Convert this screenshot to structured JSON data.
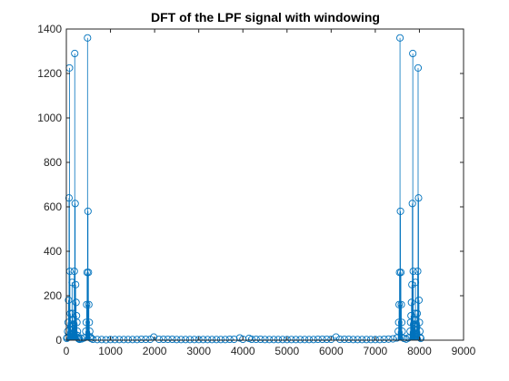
{
  "chart_data": {
    "type": "scatter",
    "style": "stem",
    "title": "DFT of the LPF signal with windowing",
    "xlabel": "",
    "ylabel": "",
    "xlim": [
      0,
      9000
    ],
    "ylim": [
      0,
      1400
    ],
    "x_ticks": [
      0,
      1000,
      2000,
      3000,
      4000,
      5000,
      6000,
      7000,
      8000,
      9000
    ],
    "y_ticks": [
      0,
      200,
      400,
      600,
      800,
      1000,
      1200,
      1400
    ],
    "grid": false,
    "legend": "none",
    "colors": {
      "series": "#0072BD",
      "axes": "#262626",
      "title": "#000000",
      "background": "#ffffff"
    },
    "series": [
      {
        "x": [
          10,
          20,
          30,
          40,
          50,
          60,
          70,
          80,
          90,
          100,
          110,
          120,
          130,
          140,
          150,
          160,
          170,
          180,
          190,
          200,
          210,
          220,
          230,
          240,
          250,
          260,
          270,
          280,
          290,
          300,
          350,
          400,
          440,
          450,
          460,
          470,
          480,
          490,
          500,
          510,
          520,
          530,
          540,
          560,
          600,
          700,
          800,
          900,
          1000,
          1100,
          1200,
          1300,
          1400,
          1500,
          1600,
          1700,
          1800,
          1900,
          1980,
          2100,
          2200,
          2300,
          2400,
          2500,
          2600,
          2700,
          2800,
          2900,
          3000,
          3100,
          3200,
          3300,
          3400,
          3500,
          3600,
          3700,
          3800,
          3930,
          4000,
          4140,
          4200,
          4300,
          4400,
          4500,
          4600,
          4700,
          4800,
          4900,
          5000,
          5100,
          5200,
          5300,
          5400,
          5500,
          5600,
          5700,
          5800,
          5900,
          6000,
          6110,
          6200,
          6300,
          6400,
          6500,
          6600,
          6700,
          6800,
          6900,
          7000,
          7100,
          7200,
          7300,
          7400,
          7490,
          7520,
          7530,
          7540,
          7550,
          7560,
          7570,
          7580,
          7590,
          7600,
          7610,
          7650,
          7700,
          7750,
          7790,
          7800,
          7810,
          7820,
          7830,
          7840,
          7850,
          7860,
          7870,
          7880,
          7890,
          7900,
          7910,
          7920,
          7930,
          7940,
          7950,
          7960,
          7970,
          7980,
          7990,
          8000,
          8010,
          8020,
          8030
        ],
        "y": [
          8,
          12,
          40,
          80,
          180,
          640,
          1225,
          310,
          120,
          60,
          30,
          45,
          260,
          120,
          90,
          50,
          70,
          310,
          1290,
          615,
          250,
          170,
          110,
          80,
          40,
          20,
          10,
          6,
          5,
          4,
          6,
          10,
          40,
          80,
          160,
          305,
          1360,
          580,
          305,
          160,
          80,
          40,
          15,
          8,
          4,
          3,
          3,
          2,
          3,
          3,
          3,
          3,
          3,
          3,
          3,
          4,
          4,
          4,
          14,
          4,
          4,
          4,
          4,
          3,
          3,
          3,
          3,
          3,
          3,
          3,
          3,
          3,
          3,
          3,
          3,
          4,
          4,
          10,
          4,
          8,
          4,
          4,
          4,
          3,
          3,
          3,
          3,
          3,
          3,
          3,
          3,
          3,
          3,
          3,
          3,
          4,
          4,
          4,
          4,
          14,
          4,
          4,
          4,
          3,
          3,
          3,
          3,
          3,
          3,
          3,
          4,
          5,
          6,
          10,
          40,
          80,
          160,
          305,
          1360,
          580,
          305,
          160,
          80,
          40,
          8,
          5,
          10,
          40,
          80,
          110,
          170,
          250,
          615,
          1290,
          310,
          70,
          50,
          90,
          120,
          260,
          45,
          30,
          60,
          120,
          310,
          1225,
          640,
          180,
          80,
          40,
          12,
          8
        ]
      }
    ]
  }
}
